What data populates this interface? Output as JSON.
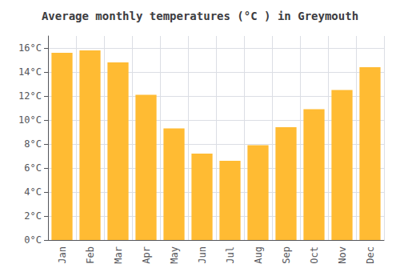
{
  "chart_data": {
    "type": "bar",
    "title": "Average monthly temperatures (°C ) in Greymouth",
    "categories": [
      "Jan",
      "Feb",
      "Mar",
      "Apr",
      "May",
      "Jun",
      "Jul",
      "Aug",
      "Sep",
      "Oct",
      "Nov",
      "Dec"
    ],
    "values": [
      15.6,
      15.8,
      14.8,
      12.1,
      9.3,
      7.2,
      6.6,
      7.9,
      9.4,
      10.9,
      12.5,
      14.4
    ],
    "color": "#FFBB33",
    "ylim": [
      0,
      17
    ],
    "yticks": [
      {
        "value": 0,
        "label": "0°C"
      },
      {
        "value": 2,
        "label": "2°C"
      },
      {
        "value": 4,
        "label": "4°C"
      },
      {
        "value": 6,
        "label": "6°C"
      },
      {
        "value": 8,
        "label": "8°C"
      },
      {
        "value": 10,
        "label": "10°C"
      },
      {
        "value": 12,
        "label": "12°C"
      },
      {
        "value": 14,
        "label": "14°C"
      },
      {
        "value": 16,
        "label": "16°C"
      }
    ],
    "grid": true
  }
}
